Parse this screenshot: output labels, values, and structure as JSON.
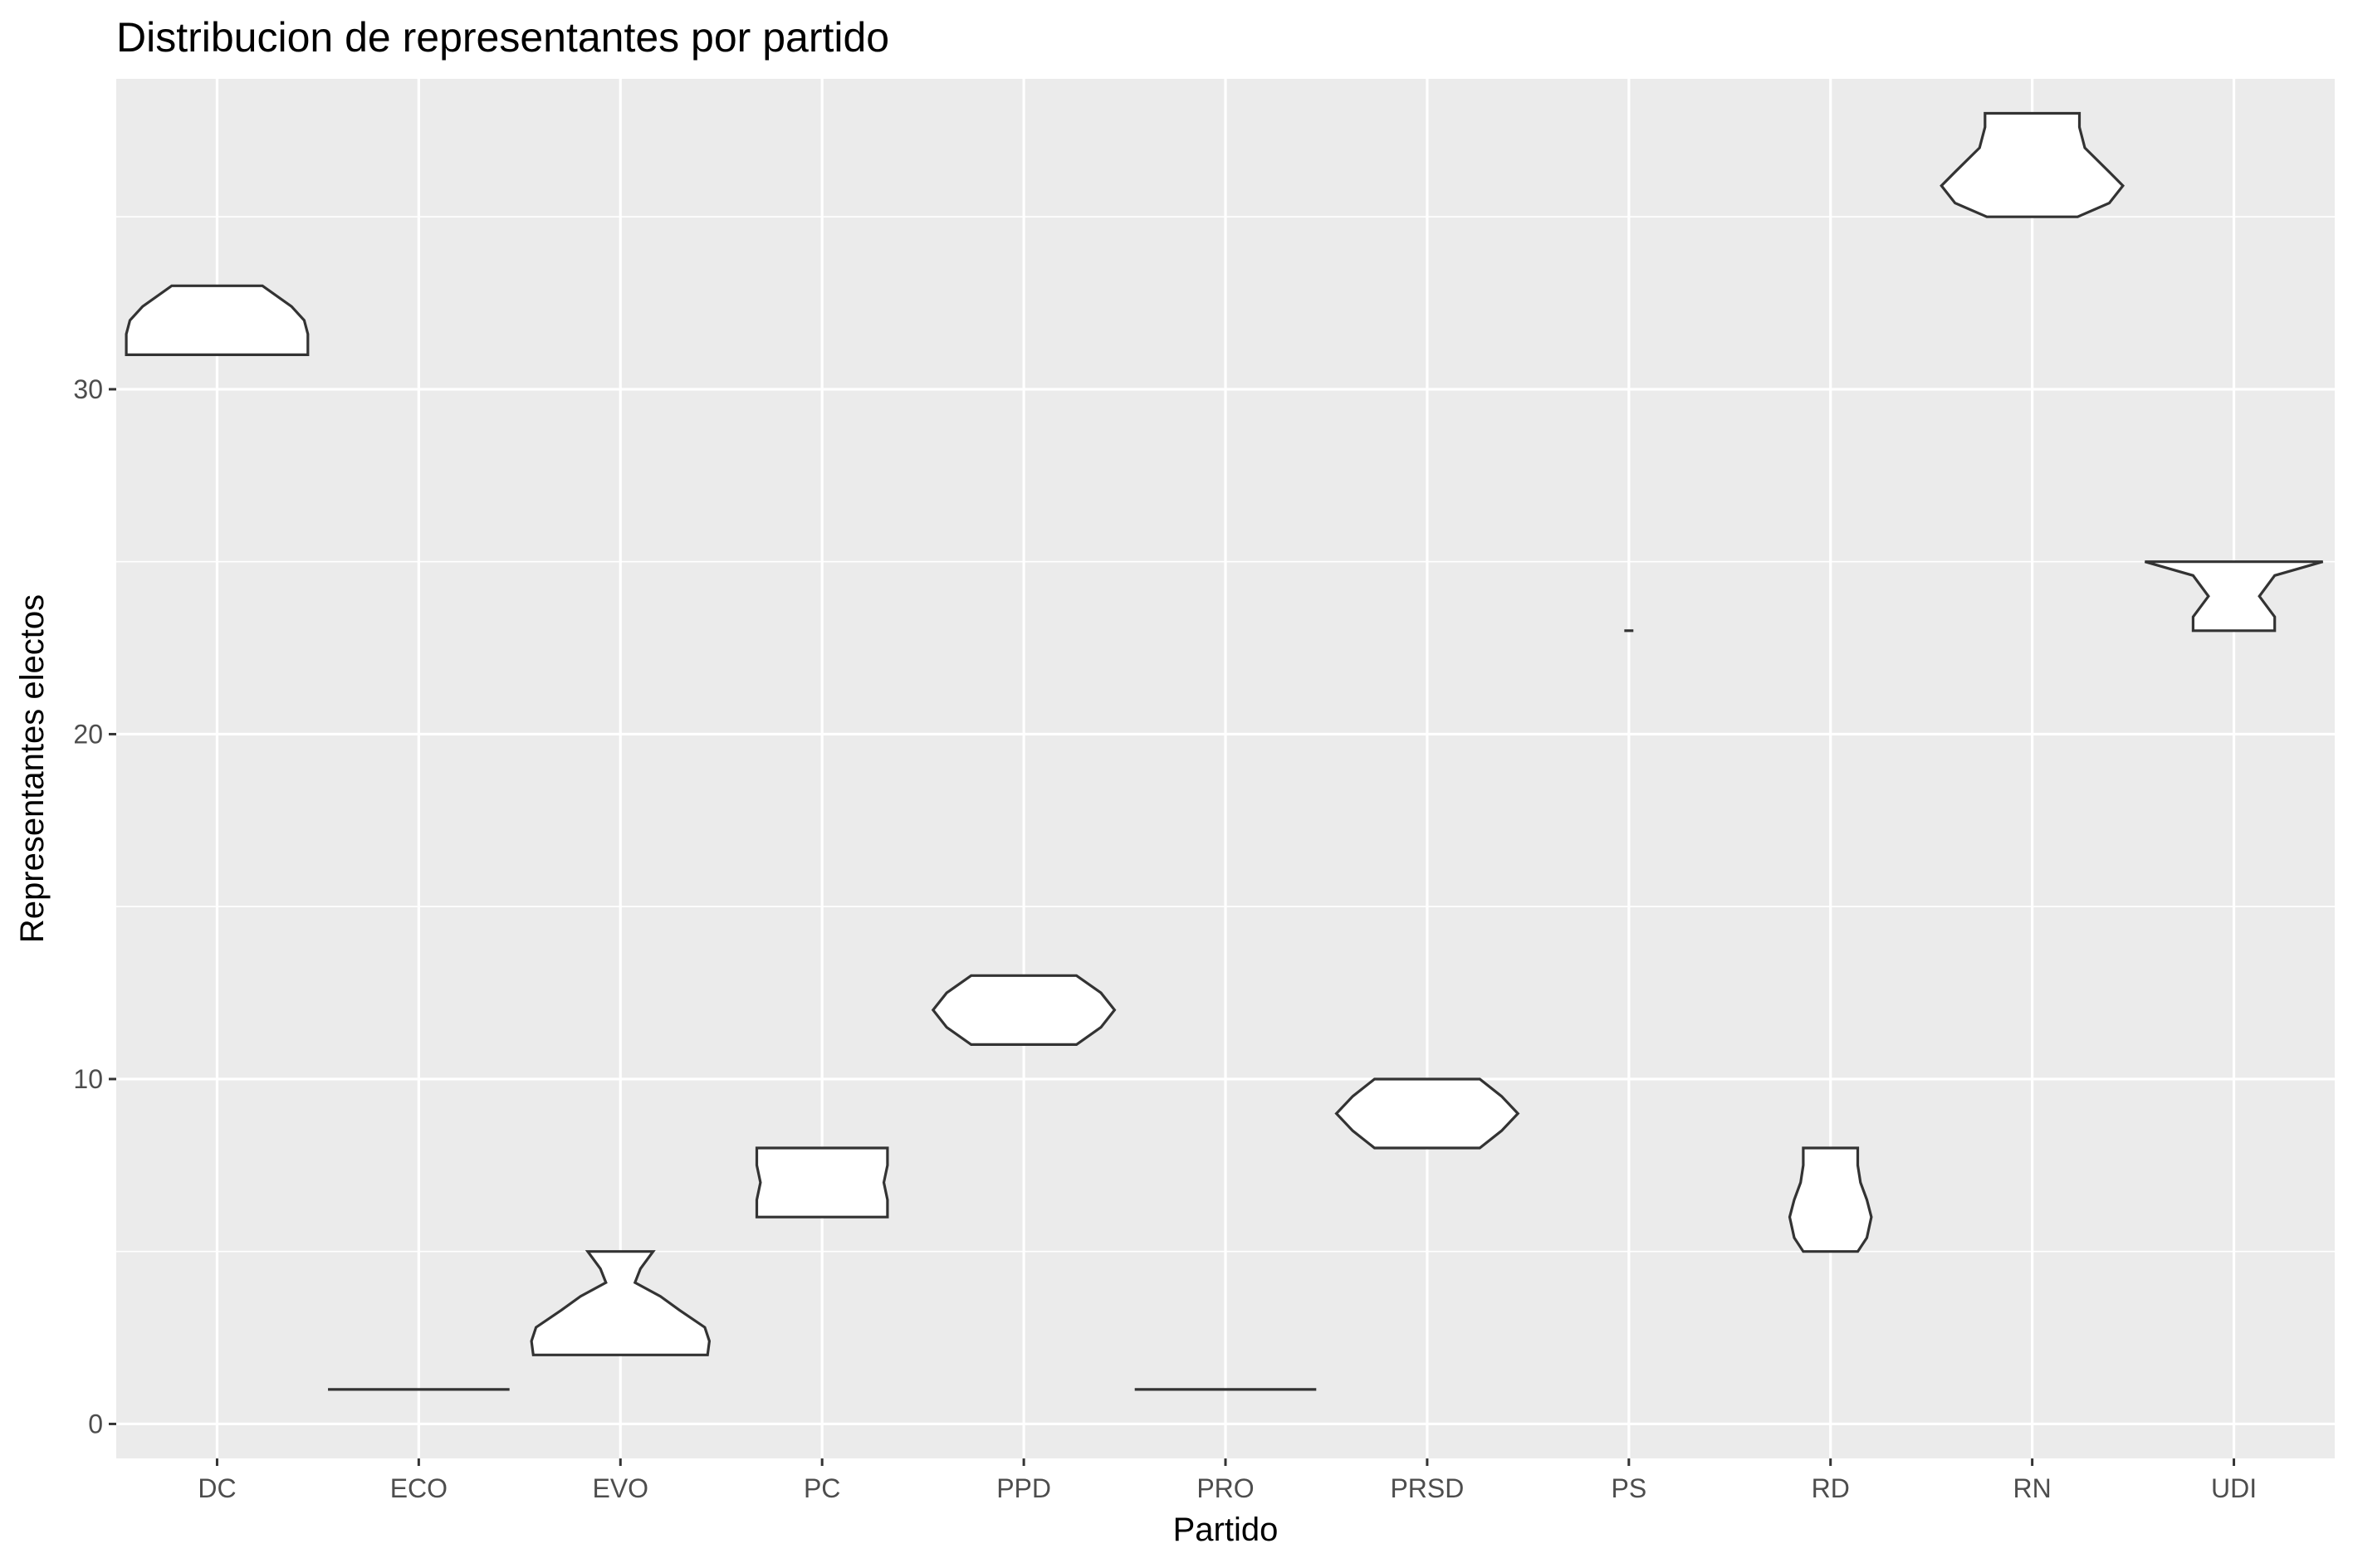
{
  "chart_data": {
    "type": "violin",
    "title": "Distribucion de representantes por partido",
    "xlabel": "Partido",
    "ylabel": "Representantes electos",
    "ylim": [
      -1,
      39
    ],
    "yticks": [
      0,
      10,
      20,
      30
    ],
    "grid": true,
    "legend": "none",
    "background": "#ebebeb",
    "categories": [
      "DC",
      "ECO",
      "EVO",
      "PC",
      "PPD",
      "PRO",
      "PRSD",
      "PS",
      "RD",
      "RN",
      "UDI"
    ],
    "violins": [
      {
        "party": "DC",
        "min": 31,
        "max": 33,
        "profile": [
          [
            31,
            1.0
          ],
          [
            31.6,
            1.0
          ],
          [
            32.0,
            0.96
          ],
          [
            32.4,
            0.82
          ],
          [
            33,
            0.5
          ]
        ]
      },
      {
        "party": "ECO",
        "min": 1,
        "max": 1,
        "profile": [
          [
            1,
            1.0
          ]
        ]
      },
      {
        "party": "EVO",
        "min": 2,
        "max": 5,
        "profile": [
          [
            2,
            0.96
          ],
          [
            2.4,
            0.98
          ],
          [
            2.8,
            0.93
          ],
          [
            3.3,
            0.65
          ],
          [
            3.7,
            0.44
          ],
          [
            4.1,
            0.16
          ],
          [
            4.5,
            0.22
          ],
          [
            5,
            0.36
          ]
        ]
      },
      {
        "party": "PC",
        "min": 6,
        "max": 8,
        "profile": [
          [
            6,
            0.72
          ],
          [
            6.5,
            0.72
          ],
          [
            7,
            0.68
          ],
          [
            7.5,
            0.72
          ],
          [
            8,
            0.72
          ]
        ]
      },
      {
        "party": "PPD",
        "min": 11,
        "max": 13,
        "profile": [
          [
            11,
            0.58
          ],
          [
            11.5,
            0.85
          ],
          [
            12,
            1.0
          ],
          [
            12.5,
            0.85
          ],
          [
            13,
            0.58
          ]
        ]
      },
      {
        "party": "PRO",
        "min": 1,
        "max": 1,
        "profile": [
          [
            1,
            1.0
          ]
        ]
      },
      {
        "party": "PRSD",
        "min": 8,
        "max": 10,
        "profile": [
          [
            8,
            0.58
          ],
          [
            8.5,
            0.82
          ],
          [
            9,
            1.0
          ],
          [
            9.5,
            0.82
          ],
          [
            10,
            0.58
          ]
        ]
      },
      {
        "party": "PS",
        "min": 23,
        "max": 23,
        "profile": [
          [
            23,
            0.05
          ]
        ]
      },
      {
        "party": "RD",
        "min": 5,
        "max": 8,
        "profile": [
          [
            5,
            0.3
          ],
          [
            5.4,
            0.4
          ],
          [
            6,
            0.45
          ],
          [
            6.5,
            0.4
          ],
          [
            7,
            0.33
          ],
          [
            7.5,
            0.3
          ],
          [
            8,
            0.3
          ]
        ]
      },
      {
        "party": "RN",
        "min": 35,
        "max": 38,
        "profile": [
          [
            35,
            0.5
          ],
          [
            35.4,
            0.85
          ],
          [
            35.9,
            1.0
          ],
          [
            36.3,
            0.85
          ],
          [
            37.0,
            0.58
          ],
          [
            37.6,
            0.52
          ],
          [
            38,
            0.52
          ]
        ]
      },
      {
        "party": "UDI",
        "min": 23,
        "max": 25,
        "profile": [
          [
            23,
            0.45
          ],
          [
            23.4,
            0.45
          ],
          [
            24,
            0.28
          ],
          [
            24.6,
            0.45
          ],
          [
            25,
            0.98
          ]
        ]
      }
    ]
  }
}
